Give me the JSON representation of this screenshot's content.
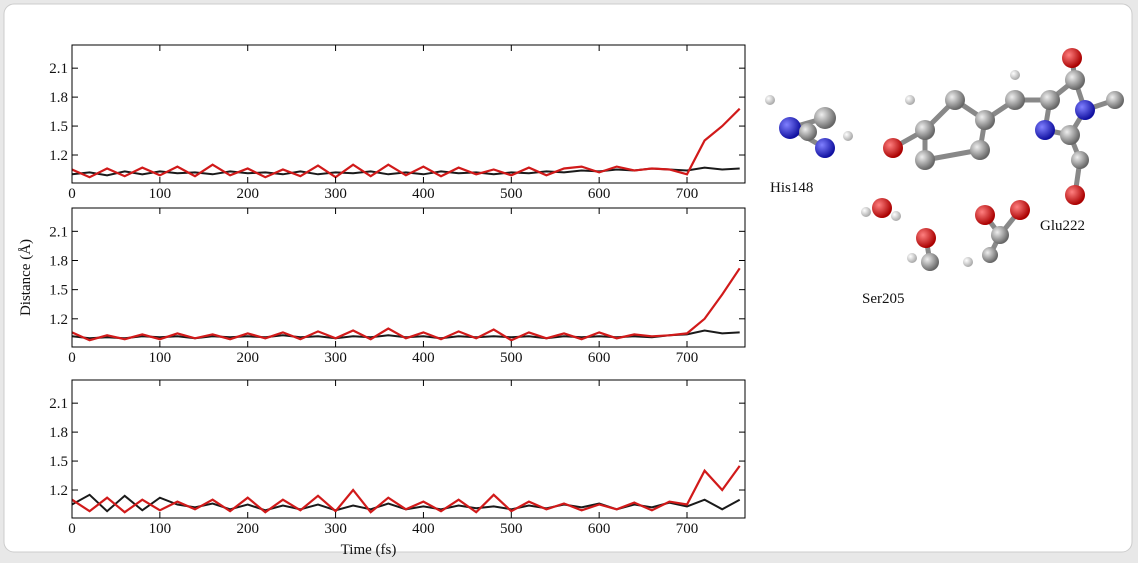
{
  "chart_data": [
    {
      "type": "line",
      "xlim": [
        0,
        766
      ],
      "ylim": [
        0.91,
        2.34
      ],
      "xticks": [
        0,
        100,
        200,
        300,
        400,
        500,
        600,
        700
      ],
      "yticks": [
        1.2,
        1.5,
        1.8,
        2.1
      ],
      "x": [
        0,
        20,
        40,
        60,
        80,
        100,
        120,
        140,
        160,
        180,
        200,
        220,
        240,
        260,
        280,
        300,
        320,
        340,
        360,
        380,
        400,
        420,
        440,
        460,
        480,
        500,
        520,
        540,
        560,
        580,
        600,
        620,
        640,
        660,
        680,
        700,
        720,
        740,
        760
      ],
      "series": [
        {
          "color": "#1a1a1a",
          "values": [
            1.0,
            1.02,
            0.99,
            1.03,
            1.0,
            1.03,
            1.01,
            1.02,
            1.0,
            1.03,
            1.01,
            1.02,
            1.0,
            1.03,
            1.0,
            1.02,
            1.01,
            1.03,
            1.0,
            1.02,
            1.0,
            1.03,
            1.01,
            1.02,
            1.0,
            1.02,
            1.01,
            1.03,
            1.02,
            1.04,
            1.03,
            1.05,
            1.04,
            1.06,
            1.05,
            1.04,
            1.07,
            1.05,
            1.06
          ]
        },
        {
          "color": "#d11a1a",
          "values": [
            1.05,
            0.97,
            1.06,
            0.98,
            1.07,
            0.99,
            1.08,
            0.98,
            1.1,
            0.99,
            1.06,
            0.97,
            1.05,
            0.98,
            1.09,
            0.97,
            1.1,
            0.98,
            1.1,
            0.99,
            1.08,
            0.98,
            1.07,
            1.0,
            1.05,
            0.99,
            1.07,
            0.99,
            1.06,
            1.08,
            1.02,
            1.08,
            1.04,
            1.06,
            1.05,
            1.0,
            1.35,
            1.5,
            1.68
          ]
        }
      ]
    },
    {
      "type": "line",
      "xlim": [
        0,
        766
      ],
      "ylim": [
        0.91,
        2.34
      ],
      "xticks": [
        0,
        100,
        200,
        300,
        400,
        500,
        600,
        700
      ],
      "yticks": [
        1.2,
        1.5,
        1.8,
        2.1
      ],
      "ylabel": "Distance (Å)",
      "x": [
        0,
        20,
        40,
        60,
        80,
        100,
        120,
        140,
        160,
        180,
        200,
        220,
        240,
        260,
        280,
        300,
        320,
        340,
        360,
        380,
        400,
        420,
        440,
        460,
        480,
        500,
        520,
        540,
        560,
        580,
        600,
        620,
        640,
        660,
        680,
        700,
        720,
        740,
        760
      ],
      "series": [
        {
          "color": "#1a1a1a",
          "values": [
            1.02,
            1.0,
            1.01,
            1.0,
            1.02,
            1.01,
            1.02,
            1.0,
            1.02,
            1.01,
            1.02,
            1.01,
            1.03,
            1.01,
            1.02,
            1.0,
            1.02,
            1.01,
            1.03,
            1.01,
            1.02,
            1.0,
            1.02,
            1.01,
            1.02,
            1.01,
            1.02,
            1.0,
            1.02,
            1.01,
            1.02,
            1.01,
            1.02,
            1.01,
            1.03,
            1.04,
            1.08,
            1.05,
            1.06
          ]
        },
        {
          "color": "#d11a1a",
          "values": [
            1.06,
            0.98,
            1.03,
            0.99,
            1.04,
            0.99,
            1.05,
            1.0,
            1.04,
            0.99,
            1.05,
            1.0,
            1.06,
            0.99,
            1.07,
            1.0,
            1.08,
            0.99,
            1.1,
            1.0,
            1.06,
            0.99,
            1.07,
            1.0,
            1.09,
            0.98,
            1.06,
            1.0,
            1.05,
            0.99,
            1.06,
            1.0,
            1.04,
            1.02,
            1.03,
            1.05,
            1.2,
            1.45,
            1.72
          ]
        }
      ]
    },
    {
      "type": "line",
      "xlim": [
        0,
        766
      ],
      "ylim": [
        0.91,
        2.34
      ],
      "xticks": [
        0,
        100,
        200,
        300,
        400,
        500,
        600,
        700
      ],
      "yticks": [
        1.2,
        1.5,
        1.8,
        2.1
      ],
      "xlabel": "Time (fs)",
      "x": [
        0,
        20,
        40,
        60,
        80,
        100,
        120,
        140,
        160,
        180,
        200,
        220,
        240,
        260,
        280,
        300,
        320,
        340,
        360,
        380,
        400,
        420,
        440,
        460,
        480,
        500,
        520,
        540,
        560,
        580,
        600,
        620,
        640,
        660,
        680,
        700,
        720,
        740,
        760
      ],
      "series": [
        {
          "color": "#1a1a1a",
          "values": [
            1.05,
            1.15,
            0.98,
            1.14,
            0.99,
            1.12,
            1.05,
            1.02,
            1.06,
            1.0,
            1.05,
            0.99,
            1.04,
            1.0,
            1.05,
            0.99,
            1.04,
            1.0,
            1.06,
            1.0,
            1.03,
            1.0,
            1.04,
            1.01,
            1.03,
            1.0,
            1.04,
            1.01,
            1.05,
            1.02,
            1.06,
            1.0,
            1.05,
            1.02,
            1.07,
            1.03,
            1.1,
            1.0,
            1.1
          ]
        },
        {
          "color": "#d11a1a",
          "values": [
            1.1,
            0.98,
            1.12,
            0.97,
            1.1,
            0.99,
            1.08,
            1.0,
            1.1,
            0.98,
            1.12,
            0.97,
            1.1,
            0.99,
            1.14,
            0.98,
            1.2,
            0.97,
            1.12,
            1.0,
            1.08,
            0.98,
            1.1,
            0.97,
            1.15,
            0.98,
            1.08,
            1.0,
            1.06,
            0.99,
            1.05,
            1.0,
            1.07,
            0.99,
            1.08,
            1.05,
            1.4,
            1.2,
            1.45
          ]
        }
      ]
    }
  ],
  "diagram": {
    "labels": [
      "His148",
      "Ser205",
      "Glu222"
    ]
  }
}
